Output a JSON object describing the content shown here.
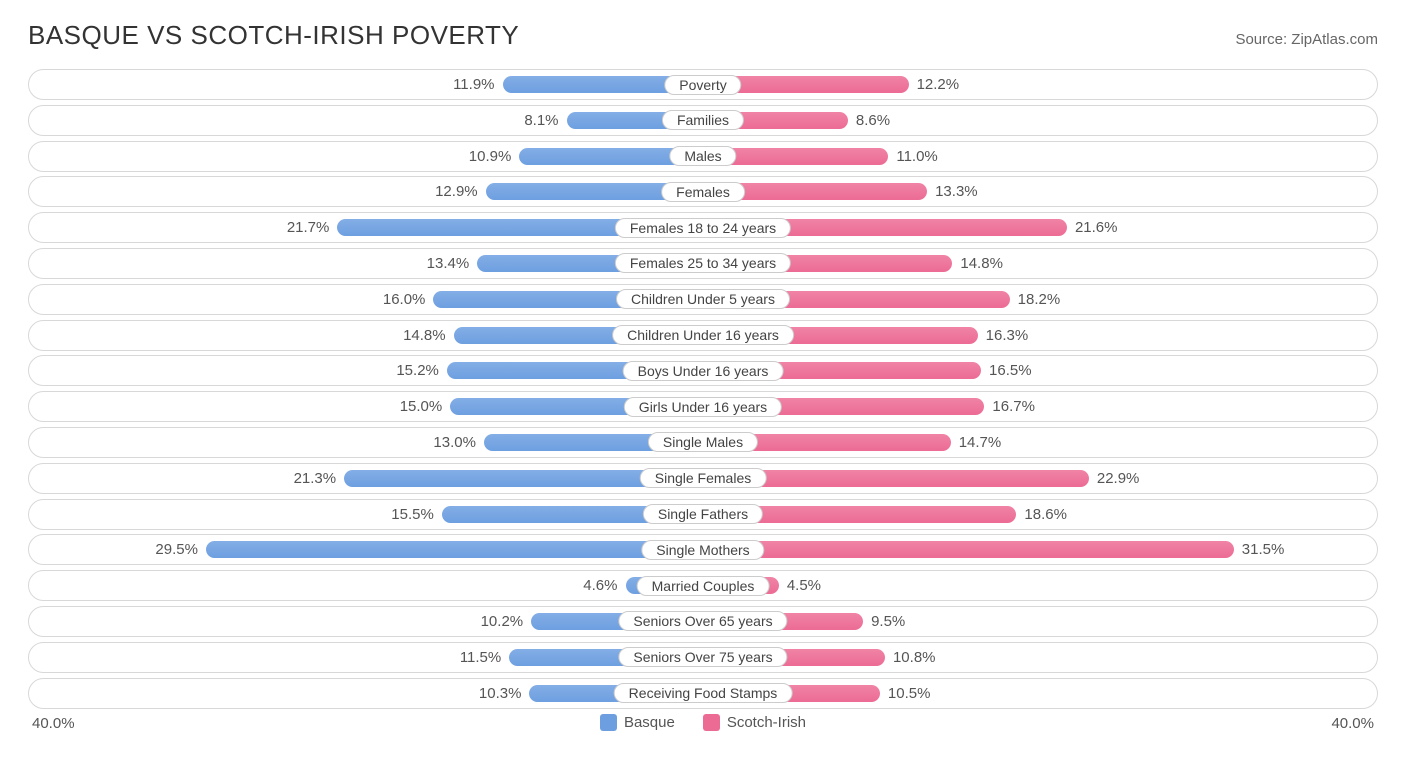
{
  "title": "BASQUE VS SCOTCH-IRISH POVERTY",
  "source": "Source: ZipAtlas.com",
  "axis_max_pct": 40.0,
  "axis_label_left": "40.0%",
  "axis_label_right": "40.0%",
  "colors": {
    "left_bar": "#6d9fe0",
    "right_bar": "#ec6b95",
    "row_border": "#d8d8d8",
    "text": "#555555",
    "title": "#333333",
    "background": "#ffffff"
  },
  "legend": [
    {
      "label": "Basque",
      "color": "#6d9fe0"
    },
    {
      "label": "Scotch-Irish",
      "color": "#ec6b95"
    }
  ],
  "rows": [
    {
      "category": "Poverty",
      "left_val": 11.9,
      "right_val": 12.2
    },
    {
      "category": "Families",
      "left_val": 8.1,
      "right_val": 8.6
    },
    {
      "category": "Males",
      "left_val": 10.9,
      "right_val": 11.0
    },
    {
      "category": "Females",
      "left_val": 12.9,
      "right_val": 13.3
    },
    {
      "category": "Females 18 to 24 years",
      "left_val": 21.7,
      "right_val": 21.6
    },
    {
      "category": "Females 25 to 34 years",
      "left_val": 13.4,
      "right_val": 14.8
    },
    {
      "category": "Children Under 5 years",
      "left_val": 16.0,
      "right_val": 18.2
    },
    {
      "category": "Children Under 16 years",
      "left_val": 14.8,
      "right_val": 16.3
    },
    {
      "category": "Boys Under 16 years",
      "left_val": 15.2,
      "right_val": 16.5
    },
    {
      "category": "Girls Under 16 years",
      "left_val": 15.0,
      "right_val": 16.7
    },
    {
      "category": "Single Males",
      "left_val": 13.0,
      "right_val": 14.7
    },
    {
      "category": "Single Females",
      "left_val": 21.3,
      "right_val": 22.9
    },
    {
      "category": "Single Fathers",
      "left_val": 15.5,
      "right_val": 18.6
    },
    {
      "category": "Single Mothers",
      "left_val": 29.5,
      "right_val": 31.5
    },
    {
      "category": "Married Couples",
      "left_val": 4.6,
      "right_val": 4.5
    },
    {
      "category": "Seniors Over 65 years",
      "left_val": 10.2,
      "right_val": 9.5
    },
    {
      "category": "Seniors Over 75 years",
      "left_val": 11.5,
      "right_val": 10.8
    },
    {
      "category": "Receiving Food Stamps",
      "left_val": 10.3,
      "right_val": 10.5
    }
  ]
}
